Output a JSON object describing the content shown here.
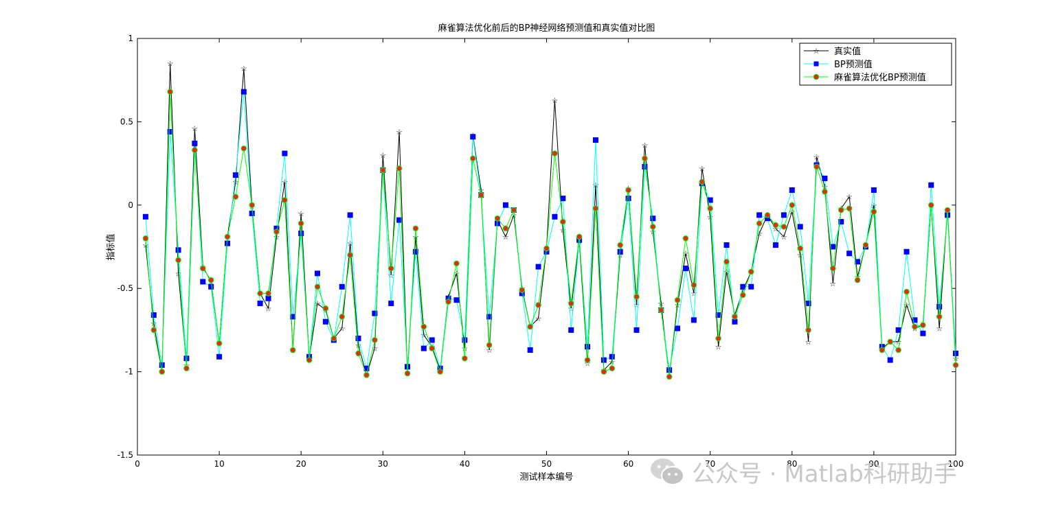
{
  "chart_data": {
    "type": "line",
    "title": "麻雀算法优化前后的BP神经网络预测值和真实值对比图",
    "xlabel": "测试样本编号",
    "ylabel": "指标值",
    "xlim": [
      0,
      100
    ],
    "ylim": [
      -1.5,
      1
    ],
    "xticks": [
      "0",
      "10",
      "20",
      "30",
      "40",
      "50",
      "60",
      "70",
      "80",
      "90",
      "100"
    ],
    "yticks": [
      "-1.5",
      "-1",
      "-0.5",
      "0",
      "0.5",
      "1"
    ],
    "grid": false,
    "legend_position": "top-right",
    "x": [
      1,
      2,
      3,
      4,
      5,
      6,
      7,
      8,
      9,
      10,
      11,
      12,
      13,
      14,
      15,
      16,
      17,
      18,
      19,
      20,
      21,
      22,
      23,
      24,
      25,
      26,
      27,
      28,
      29,
      30,
      31,
      32,
      33,
      34,
      35,
      36,
      37,
      38,
      39,
      40,
      41,
      42,
      43,
      44,
      45,
      46,
      47,
      48,
      49,
      50,
      51,
      52,
      53,
      54,
      55,
      56,
      57,
      58,
      59,
      60,
      61,
      62,
      63,
      64,
      65,
      66,
      67,
      68,
      69,
      70,
      71,
      72,
      73,
      74,
      75,
      76,
      77,
      78,
      79,
      80,
      81,
      82,
      83,
      84,
      85,
      86,
      87,
      88,
      89,
      90,
      91,
      92,
      93,
      94,
      95,
      96,
      97,
      98,
      99,
      100
    ],
    "series": [
      {
        "name": "真实值",
        "color": "#000000",
        "marker": "star",
        "values": [
          -0.24,
          -0.71,
          -1.0,
          0.85,
          -0.41,
          -0.96,
          0.46,
          -0.37,
          -0.46,
          -0.83,
          -0.19,
          0.14,
          0.82,
          -0.01,
          -0.53,
          -0.62,
          -0.19,
          0.14,
          -0.87,
          -0.05,
          -0.92,
          -0.59,
          -0.63,
          -0.8,
          -0.74,
          -0.23,
          -0.84,
          -1.02,
          -0.86,
          0.3,
          -0.42,
          0.44,
          -1.01,
          -0.19,
          -0.78,
          -0.85,
          -0.99,
          -0.55,
          -0.41,
          -0.86,
          0.42,
          0.09,
          -0.87,
          -0.09,
          -0.19,
          -0.06,
          -0.5,
          -0.73,
          -0.68,
          -0.26,
          0.63,
          -0.15,
          -0.62,
          -0.22,
          -0.95,
          0.12,
          -0.99,
          -0.94,
          -0.3,
          0.1,
          -0.6,
          0.36,
          -0.16,
          -0.59,
          -1.03,
          -0.6,
          -0.29,
          -0.53,
          0.22,
          -0.07,
          -0.85,
          -0.4,
          -0.66,
          -0.51,
          -0.4,
          -0.17,
          -0.06,
          -0.14,
          -0.19,
          -0.04,
          -0.3,
          -0.82,
          0.29,
          0.11,
          -0.47,
          -0.02,
          0.05,
          -0.43,
          -0.24,
          0.0,
          -0.86,
          -0.82,
          -0.82,
          -0.6,
          -0.74,
          -0.72,
          0.0,
          -0.74,
          -0.03,
          -0.92
        ]
      },
      {
        "name": "BP预测值",
        "color": "#00ffff",
        "marker": "square",
        "marker_color": "#0000ff",
        "values": [
          -0.07,
          -0.66,
          -0.96,
          0.44,
          -0.27,
          -0.92,
          0.37,
          -0.46,
          -0.49,
          -0.91,
          -0.23,
          0.18,
          0.68,
          -0.05,
          -0.59,
          -0.56,
          -0.14,
          0.31,
          -0.67,
          -0.17,
          -0.91,
          -0.41,
          -0.7,
          -0.81,
          -0.49,
          -0.06,
          -0.8,
          -0.98,
          -0.65,
          0.21,
          -0.59,
          -0.09,
          -0.97,
          -0.28,
          -0.86,
          -0.81,
          -0.98,
          -0.56,
          -0.57,
          -0.81,
          0.41,
          0.06,
          -0.67,
          -0.11,
          0.0,
          -0.03,
          -0.53,
          -0.87,
          -0.37,
          -0.28,
          -0.07,
          0.04,
          -0.75,
          -0.21,
          -0.85,
          0.39,
          -0.93,
          -0.91,
          -0.28,
          0.04,
          -0.75,
          0.23,
          -0.08,
          -0.63,
          -0.99,
          -0.74,
          -0.38,
          -0.69,
          0.13,
          0.03,
          -0.66,
          -0.24,
          -0.7,
          -0.49,
          -0.49,
          -0.06,
          -0.08,
          -0.24,
          -0.06,
          0.09,
          -0.13,
          -0.59,
          0.24,
          0.16,
          -0.25,
          -0.1,
          -0.29,
          -0.34,
          -0.25,
          0.09,
          -0.85,
          -0.93,
          -0.75,
          -0.28,
          -0.69,
          -0.77,
          0.12,
          -0.61,
          -0.06,
          -0.89
        ]
      },
      {
        "name": "麻雀算法优化BP预测值",
        "color": "#00ff00",
        "marker": "circle",
        "marker_color": "#e8281e",
        "values": [
          -0.2,
          -0.75,
          -1.0,
          0.68,
          -0.33,
          -0.98,
          0.33,
          -0.38,
          -0.45,
          -0.83,
          -0.19,
          0.05,
          0.34,
          0.0,
          -0.53,
          -0.53,
          -0.16,
          0.03,
          -0.87,
          -0.11,
          -0.93,
          -0.49,
          -0.62,
          -0.8,
          -0.67,
          -0.3,
          -0.89,
          -1.02,
          -0.81,
          0.21,
          -0.38,
          0.22,
          -1.01,
          -0.14,
          -0.73,
          -0.86,
          -1.0,
          -0.58,
          -0.35,
          -0.92,
          0.28,
          0.06,
          -0.84,
          -0.08,
          -0.14,
          -0.03,
          -0.51,
          -0.73,
          -0.6,
          -0.26,
          0.31,
          -0.1,
          -0.59,
          -0.19,
          -0.93,
          -0.02,
          -1.0,
          -0.98,
          -0.24,
          0.09,
          -0.55,
          0.28,
          -0.13,
          -0.63,
          -1.03,
          -0.57,
          -0.2,
          -0.48,
          0.14,
          -0.02,
          -0.8,
          -0.34,
          -0.67,
          -0.54,
          -0.4,
          -0.11,
          -0.06,
          -0.12,
          -0.13,
          0.0,
          -0.26,
          -0.75,
          0.23,
          0.08,
          -0.38,
          -0.03,
          -0.02,
          -0.45,
          -0.24,
          -0.04,
          -0.87,
          -0.82,
          -0.87,
          -0.52,
          -0.73,
          -0.72,
          0.0,
          -0.67,
          -0.03,
          -0.96
        ]
      }
    ]
  },
  "watermark": {
    "icon": "wechat-icon",
    "text": "公众号 · Matlab科研助手"
  }
}
